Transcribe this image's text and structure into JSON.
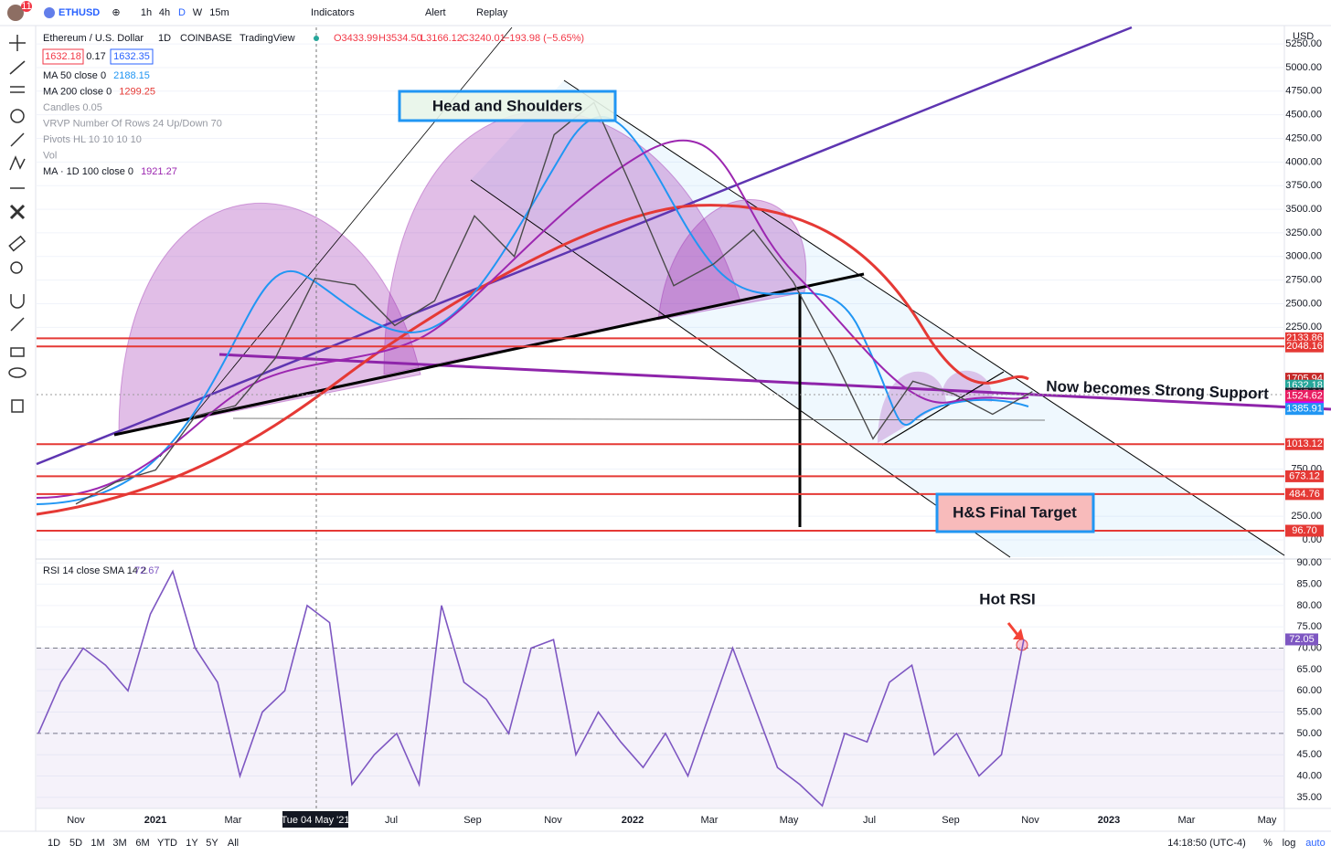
{
  "toolbar": {
    "badge": "11",
    "symbol": "ETHUSD",
    "intervals": [
      "1h",
      "4h",
      "D",
      "W",
      "15m"
    ],
    "indicators": "Indicators",
    "alert": "Alert",
    "replay": "Replay",
    "currency": "USD"
  },
  "legend": {
    "title": "Ethereum / U.S. Dollar",
    "interval": "1D",
    "exchange": "COINBASE",
    "source": "TradingView",
    "ohlc": [
      "O3433.99",
      "H3534.50",
      "L3166.12",
      "C3240.01",
      "−193.98 (−5.65%)"
    ],
    "bid": "1632.18",
    "spread": "0.17",
    "ask": "1632.35",
    "studies": [
      {
        "name": "MA 50 close 0",
        "value": "2188.15",
        "color": "#2196f3"
      },
      {
        "name": "MA 200 close 0",
        "value": "1299.25",
        "color": "#e53935"
      },
      {
        "name": "Candles 0.05",
        "value": null,
        "color": null
      },
      {
        "name": "VRVP Number Of Rows 24 Up/Down 70",
        "value": null,
        "color": null
      },
      {
        "name": "Pivots HL 10 10 10 10",
        "value": null,
        "color": null
      },
      {
        "name": "Vol",
        "value": null,
        "color": null
      },
      {
        "name": "MA · 1D 100 close 0",
        "value": "1921.27",
        "color": "#9c27b0"
      }
    ],
    "rsi_name": "RSI 14 close SMA 14 2",
    "rsi_value": "72.67"
  },
  "annotations": {
    "head_shoulders": "Head and Shoulders",
    "target": "H&S Final Target",
    "support": "Now becomes Strong Support",
    "hot_rsi": "Hot RSI"
  },
  "chart_data": [
    {
      "type": "line",
      "series": [
        {
          "name": "ETHUSD",
          "color": "#4a4a4a",
          "values": [
            380,
            610,
            740,
            1310,
            1420,
            1920,
            2770,
            2700,
            2270,
            2530,
            3430,
            3000,
            4290,
            4630,
            3680,
            2690,
            2920,
            3280,
            2730,
            1940,
            1070,
            1680,
            1550,
            1330,
            1570
          ]
        }
      ],
      "ylim": [
        -203,
        5425
      ],
      "yticks": [
        {
          "value": 0,
          "label": "0.00"
        },
        {
          "value": 250,
          "label": "250.00"
        },
        {
          "value": 750,
          "label": "750.00"
        },
        {
          "value": 2250,
          "label": "2250.00"
        },
        {
          "value": 2500,
          "label": "2500.00"
        },
        {
          "value": 2750,
          "label": "2750.00"
        },
        {
          "value": 3000,
          "label": "3000.00"
        },
        {
          "value": 3250,
          "label": "3250.00"
        },
        {
          "value": 3500,
          "label": "3500.00"
        },
        {
          "value": 3750,
          "label": "3750.00"
        },
        {
          "value": 4000,
          "label": "4000.00"
        },
        {
          "value": 4250,
          "label": "4250.00"
        },
        {
          "value": 4500,
          "label": "4500.00"
        },
        {
          "value": 4750,
          "label": "4750.00"
        },
        {
          "value": 5000,
          "label": "5000.00"
        },
        {
          "value": 5250,
          "label": "5250.00"
        }
      ],
      "price_labels": [
        {
          "value": 2133.86,
          "label": "2133.86",
          "color": "#e53935"
        },
        {
          "value": 2048.16,
          "label": "2048.16",
          "color": "#e53935"
        },
        {
          "value": 1705.94,
          "label": "1705.94",
          "color": "#c62828"
        },
        {
          "value": 1632.18,
          "label": "1632.18",
          "color": "#26a69a"
        },
        {
          "value": 1547.29,
          "label": "1547.29",
          "color": "#131722"
        },
        {
          "value": 1524.62,
          "label": "1524.62",
          "color": "#e91e63"
        },
        {
          "value": 1403.62,
          "label": "1403.62",
          "color": "#d500f9"
        },
        {
          "value": 1385.91,
          "label": "1385.91",
          "color": "#2196f3"
        },
        {
          "value": 1013.12,
          "label": "1013.12",
          "color": "#e53935"
        },
        {
          "value": 673.12,
          "label": "673.12",
          "color": "#e53935"
        },
        {
          "value": 484.76,
          "label": "484.76",
          "color": "#e53935"
        },
        {
          "value": 96.7,
          "label": "96.70",
          "color": "#e53935"
        }
      ],
      "grid": true
    },
    {
      "type": "line",
      "series": [
        {
          "name": "RSI",
          "color": "#7e57c2",
          "values": [
            50,
            62,
            70,
            66,
            60,
            78,
            88,
            70,
            62,
            40,
            55,
            60,
            80,
            76,
            38,
            45,
            50,
            38,
            80,
            62,
            58,
            50,
            70,
            72,
            45,
            55,
            48,
            42,
            50,
            40,
            55,
            70,
            56,
            42,
            38,
            33,
            50,
            48,
            62,
            66,
            45,
            50,
            40,
            45,
            72.05
          ]
        }
      ],
      "last_label": {
        "value": 72.05,
        "label": "72.05"
      },
      "ylim": [
        32.4,
        90.9
      ],
      "yticks": [
        {
          "value": 35,
          "label": "35.00"
        },
        {
          "value": 40,
          "label": "40.00"
        },
        {
          "value": 45,
          "label": "45.00"
        },
        {
          "value": 50,
          "label": "50.00"
        },
        {
          "value": 55,
          "label": "55.00"
        },
        {
          "value": 60,
          "label": "60.00"
        },
        {
          "value": 65,
          "label": "65.00"
        },
        {
          "value": 70,
          "label": "70.00"
        },
        {
          "value": 75,
          "label": "75.00"
        },
        {
          "value": 80,
          "label": "80.00"
        },
        {
          "value": 85,
          "label": "85.00"
        },
        {
          "value": 90,
          "label": "90.00"
        }
      ],
      "bands": [
        70,
        50
      ],
      "grid": true
    }
  ],
  "time_axis": [
    "Nov",
    "2021",
    "Mar",
    "Jul",
    "Sep",
    "Nov",
    "2022",
    "Mar",
    "May",
    "Jul",
    "Sep",
    "Nov",
    "2023",
    "Mar",
    "May"
  ],
  "crosshair_date": "Tue 04 May '21",
  "bottom_bar": {
    "ranges": [
      "1D",
      "5D",
      "1M",
      "3M",
      "6M",
      "YTD",
      "1Y",
      "5Y",
      "All"
    ],
    "clock": "14:18:50 (UTC-4)",
    "percent": "%",
    "log": "log",
    "auto": "auto"
  }
}
